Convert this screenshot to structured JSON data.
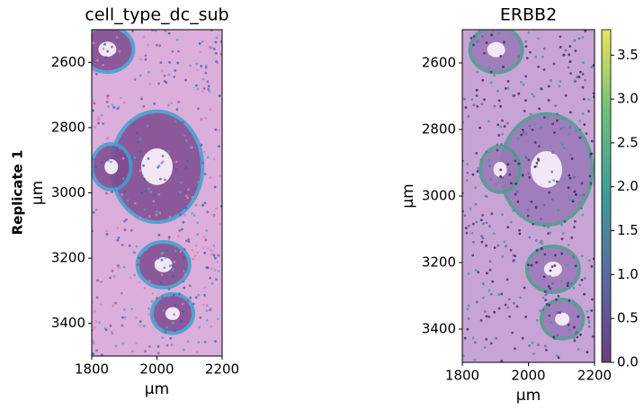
{
  "row_label": "Replicate 1",
  "chart_data": [
    {
      "type": "spatial",
      "title": "cell_type_dc_sub",
      "xlabel": "µm",
      "ylabel": "µm",
      "xlim": [
        1800,
        2200
      ],
      "ylim": [
        3500,
        2500
      ],
      "xticks": [
        1800,
        2000,
        2200
      ],
      "yticks": [
        2600,
        2800,
        3000,
        3200,
        3400
      ]
    },
    {
      "type": "spatial",
      "title": "ERBB2",
      "xlabel": "µm",
      "ylabel": "µm",
      "xlim": [
        1800,
        2200
      ],
      "ylim": [
        3500,
        2500
      ],
      "xticks": [
        1800,
        2000,
        2200
      ],
      "yticks": [
        2600,
        2800,
        3000,
        3200,
        3400
      ],
      "colorbar": {
        "lim": [
          0,
          3.79
        ],
        "colors": [
          "#6a3f7e",
          "#5a6aa0",
          "#3f9a9a",
          "#6cc07a",
          "#e8e55a"
        ],
        "ticks": [
          {
            "value": 0,
            "label": "0.0"
          },
          0.5,
          {
            "value": 1,
            "label": "1.0"
          },
          1.5,
          {
            "value": 2,
            "label": "2.0"
          },
          2.5,
          {
            "value": 3,
            "label": "3.0"
          },
          3.5
        ]
      }
    }
  ]
}
